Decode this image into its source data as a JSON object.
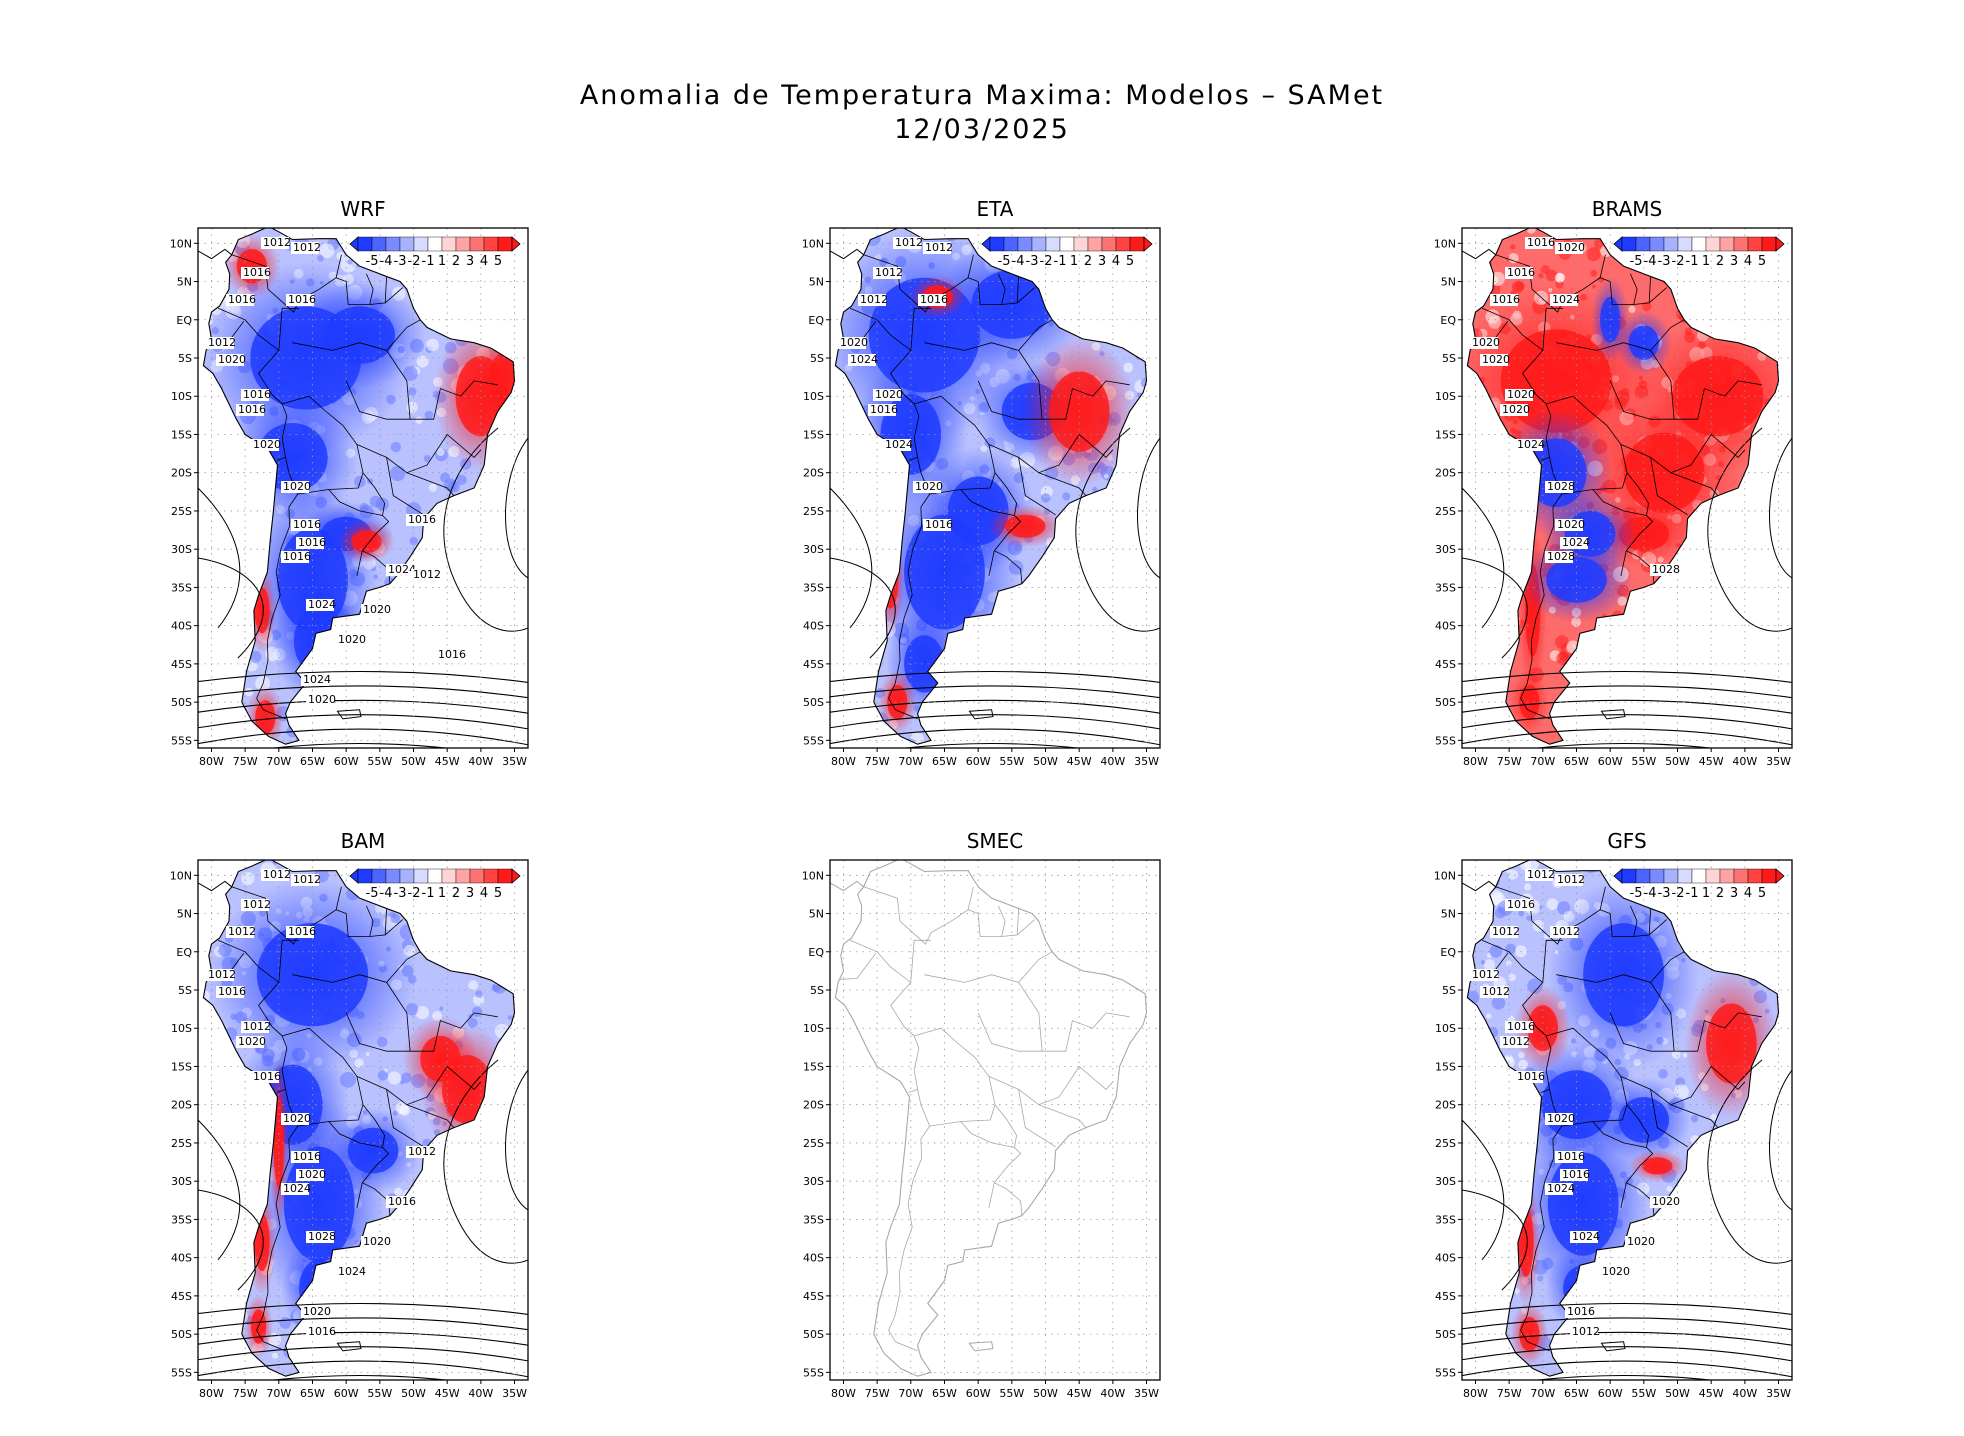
{
  "title": "Anomalia de Temperatura Maxima: Modelos – SAMet",
  "date": "12/03/2025",
  "lat_labels": [
    "10N",
    "5N",
    "EQ",
    "5S",
    "10S",
    "15S",
    "20S",
    "25S",
    "30S",
    "35S",
    "40S",
    "45S",
    "50S",
    "55S"
  ],
  "lon_labels": [
    "80W",
    "75W",
    "70W",
    "65W",
    "60W",
    "55W",
    "50W",
    "45W",
    "40W",
    "35W"
  ],
  "colorbar_labels": [
    "-5",
    "-4",
    "-3",
    "-2",
    "-1",
    "1",
    "2",
    "3",
    "4",
    "5"
  ],
  "colors": {
    "blue": "#1f3bff",
    "red": "#ff1a1a",
    "white": "#ffffff",
    "coast": "#000000",
    "grid": "#9a9a9a"
  },
  "panels": [
    {
      "name": "WRF",
      "has_data": true,
      "contour_labels": [
        "1012",
        "1012",
        "1016",
        "1016",
        "1016",
        "1012",
        "1020",
        "1016",
        "1016",
        "1020",
        "1020",
        "1016",
        "1016",
        "1016",
        "1024",
        "1020",
        "1024",
        "1020",
        "1024",
        "1020",
        "1016",
        "1012",
        "1016"
      ]
    },
    {
      "name": "ETA",
      "has_data": true,
      "contour_labels": [
        "1012",
        "1012",
        "1012",
        "1012",
        "1016",
        "1020",
        "1024",
        "1020",
        "1016",
        "1024",
        "1020",
        "1016"
      ]
    },
    {
      "name": "BRAMS",
      "has_data": true,
      "contour_labels": [
        "1016",
        "1020",
        "1016",
        "1016",
        "1024",
        "1020",
        "1020",
        "1020",
        "1020",
        "1024",
        "1028",
        "1020",
        "1024",
        "1028",
        "1028"
      ]
    },
    {
      "name": "BAM",
      "has_data": true,
      "contour_labels": [
        "1012",
        "1012",
        "1012",
        "1012",
        "1016",
        "1012",
        "1016",
        "1012",
        "1020",
        "1016",
        "1020",
        "1016",
        "1020",
        "1024",
        "1016",
        "1020",
        "1028",
        "1024",
        "1020",
        "1016",
        "1012"
      ]
    },
    {
      "name": "SMEC",
      "has_data": false,
      "contour_labels": []
    },
    {
      "name": "GFS",
      "has_data": true,
      "contour_labels": [
        "1012",
        "1012",
        "1016",
        "1012",
        "1012",
        "1012",
        "1012",
        "1016",
        "1012",
        "1016",
        "1020",
        "1016",
        "1016",
        "1024",
        "1020",
        "1020",
        "1024",
        "1020",
        "1016",
        "1012"
      ]
    }
  ]
}
